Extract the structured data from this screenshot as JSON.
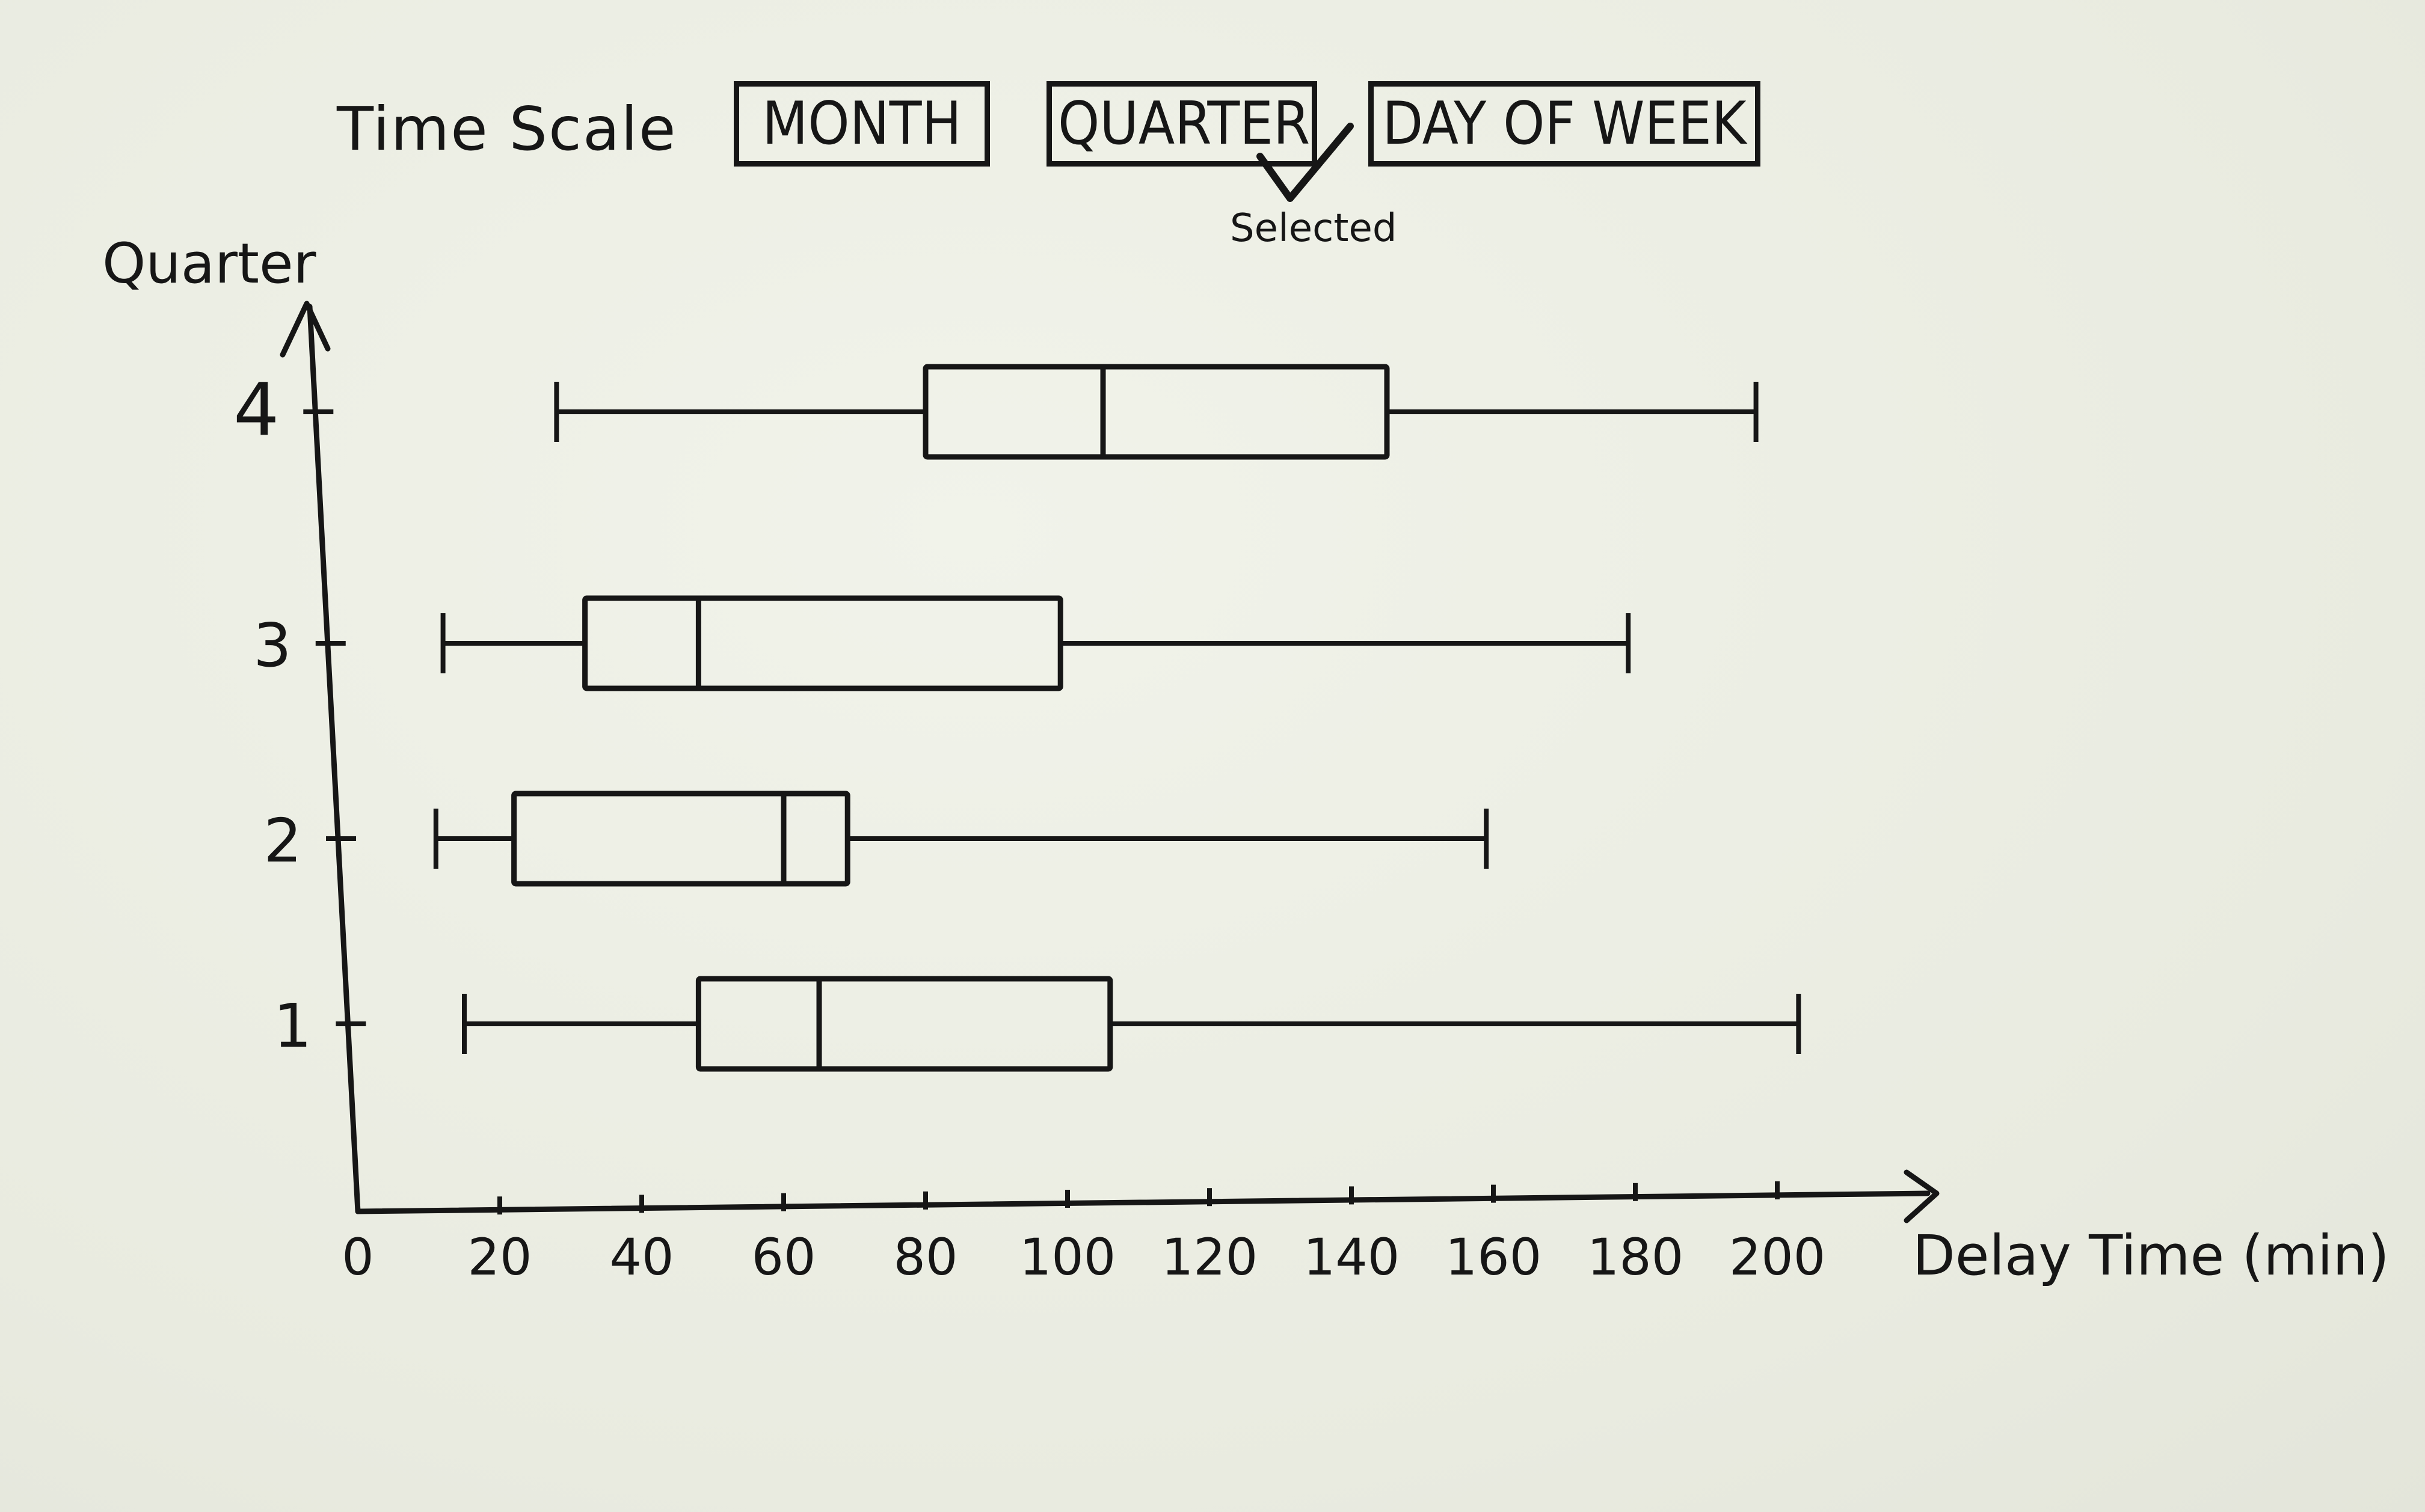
{
  "controls": {
    "time_scale_label": "Time Scale",
    "buttons": [
      {
        "id": "month",
        "label": "MONTH",
        "selected": false
      },
      {
        "id": "quarter",
        "label": "QUARTER",
        "selected": true
      },
      {
        "id": "day_of_week",
        "label": "DAY OF WEEK",
        "selected": false
      }
    ],
    "selected_note": "Selected"
  },
  "chart_data": {
    "type": "boxplot",
    "orientation": "horizontal",
    "title": "",
    "xlabel": "Delay Time (min)",
    "ylabel": "Quarter",
    "xlim": [
      0,
      210
    ],
    "x_ticks": [
      0,
      20,
      40,
      60,
      80,
      100,
      120,
      140,
      160,
      180,
      200
    ],
    "categories": [
      "1",
      "2",
      "3",
      "4"
    ],
    "series": [
      {
        "category": "1",
        "min": 15,
        "q1": 48,
        "median": 65,
        "q3": 106,
        "max": 203
      },
      {
        "category": "2",
        "min": 11,
        "q1": 22,
        "median": 60,
        "q3": 69,
        "max": 159
      },
      {
        "category": "3",
        "min": 12,
        "q1": 32,
        "median": 48,
        "q3": 99,
        "max": 179
      },
      {
        "category": "4",
        "min": 28,
        "q1": 80,
        "median": 105,
        "q3": 145,
        "max": 197
      }
    ],
    "grid": false,
    "legend": "none"
  }
}
